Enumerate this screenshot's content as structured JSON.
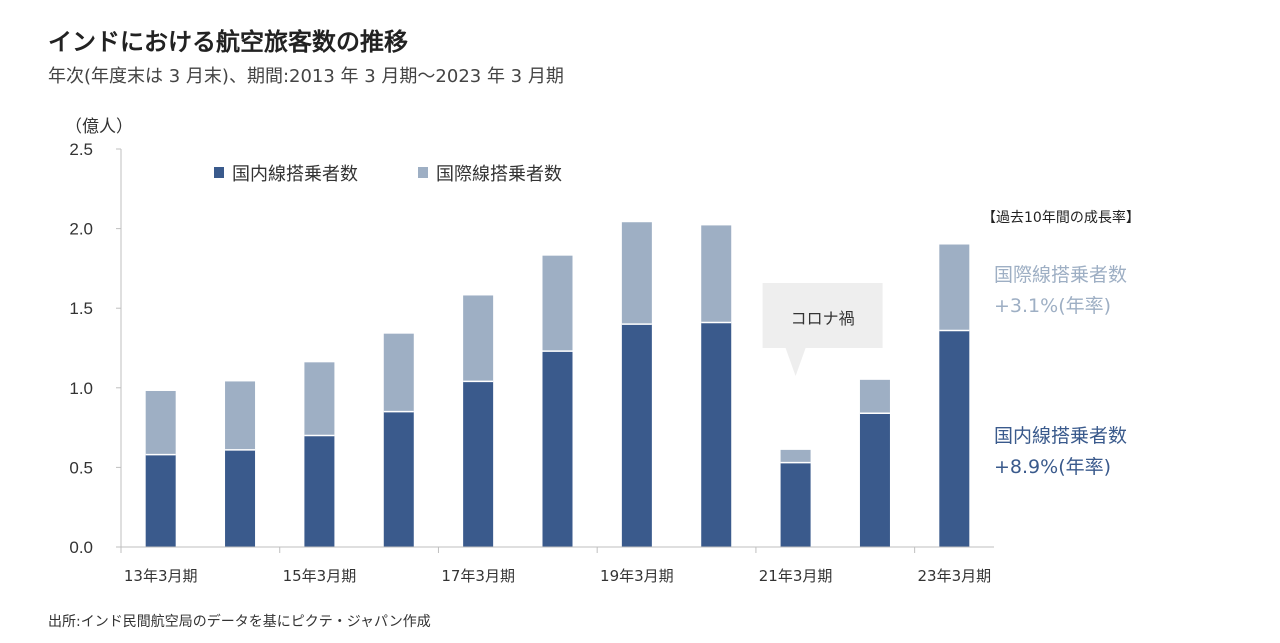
{
  "title": "インドにおける航空旅客数の推移",
  "subtitle": "年次(年度末は 3 月末)、期間:2013 年 3 月期～2023 年 3 月期",
  "source": "出所:インド民間航空局のデータを基にピクテ・ジャパン作成",
  "colors": {
    "domestic": "#3a5a8c",
    "international": "#9eafc4",
    "axis": "#bfbfbf",
    "callout_bg": "#eeeeee"
  },
  "chart_data": {
    "type": "bar",
    "stacked": true,
    "y_unit": "（億人）",
    "ylim": [
      0,
      2.5
    ],
    "y_ticks": [
      "0.0",
      "0.5",
      "1.0",
      "1.5",
      "2.0",
      "2.5"
    ],
    "categories": [
      "2013",
      "2014",
      "2015",
      "2016",
      "2017",
      "2018",
      "2019",
      "2020",
      "2021",
      "2022",
      "2023"
    ],
    "x_tick_labels": [
      {
        "index": 0,
        "label": "13年3月期"
      },
      {
        "index": 2,
        "label": "15年3月期"
      },
      {
        "index": 4,
        "label": "17年3月期"
      },
      {
        "index": 6,
        "label": "19年3月期"
      },
      {
        "index": 8,
        "label": "21年3月期"
      },
      {
        "index": 10,
        "label": "23年3月期"
      }
    ],
    "series": [
      {
        "name": "国内線搭乗者数",
        "values": [
          0.58,
          0.61,
          0.7,
          0.85,
          1.04,
          1.23,
          1.4,
          1.41,
          0.53,
          0.84,
          1.36
        ]
      },
      {
        "name": "国際線搭乗者数",
        "values": [
          0.4,
          0.43,
          0.46,
          0.49,
          0.54,
          0.6,
          0.64,
          0.61,
          0.08,
          0.21,
          0.54
        ]
      }
    ],
    "legend": [
      "国内線搭乗者数",
      "国際線搭乗者数"
    ],
    "legend_position": "top-left",
    "grid": false,
    "annotations": {
      "growth_header": "【過去10年間の成長率】",
      "intl_label": "国際線搭乗者数",
      "intl_rate": "+3.1%(年率)",
      "dom_label": "国内線搭乗者数",
      "dom_rate": "+8.9%(年率)",
      "callout": "コロナ禍",
      "callout_category_index": 8
    }
  }
}
